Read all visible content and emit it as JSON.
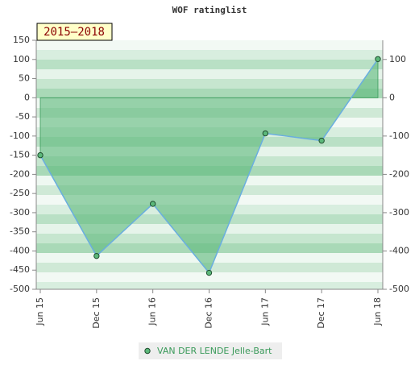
{
  "chart_data": {
    "type": "area",
    "title": "WOF ratinglist",
    "annotation": "2015–2018",
    "categories": [
      "Jun 15",
      "Dec 15",
      "Jun 16",
      "Dec 16",
      "Jun 17",
      "Dec 17",
      "Jun 18"
    ],
    "series": [
      {
        "name": "VAN DER LENDE Jelle-Bart",
        "color": "#5cb87a",
        "line_color": "#6aaee0",
        "values": [
          -150,
          -413,
          -277,
          -457,
          -93,
          -112,
          101
        ]
      }
    ],
    "ylim": [
      -500,
      150
    ],
    "yticks": [
      -500,
      -450,
      -400,
      -350,
      -300,
      -250,
      -200,
      -150,
      -100,
      -50,
      0,
      50,
      100,
      150
    ],
    "y2lim": [
      -500,
      150
    ],
    "y2ticks": [
      -500,
      -400,
      -300,
      -200,
      -100,
      0,
      100
    ],
    "grid": true
  }
}
